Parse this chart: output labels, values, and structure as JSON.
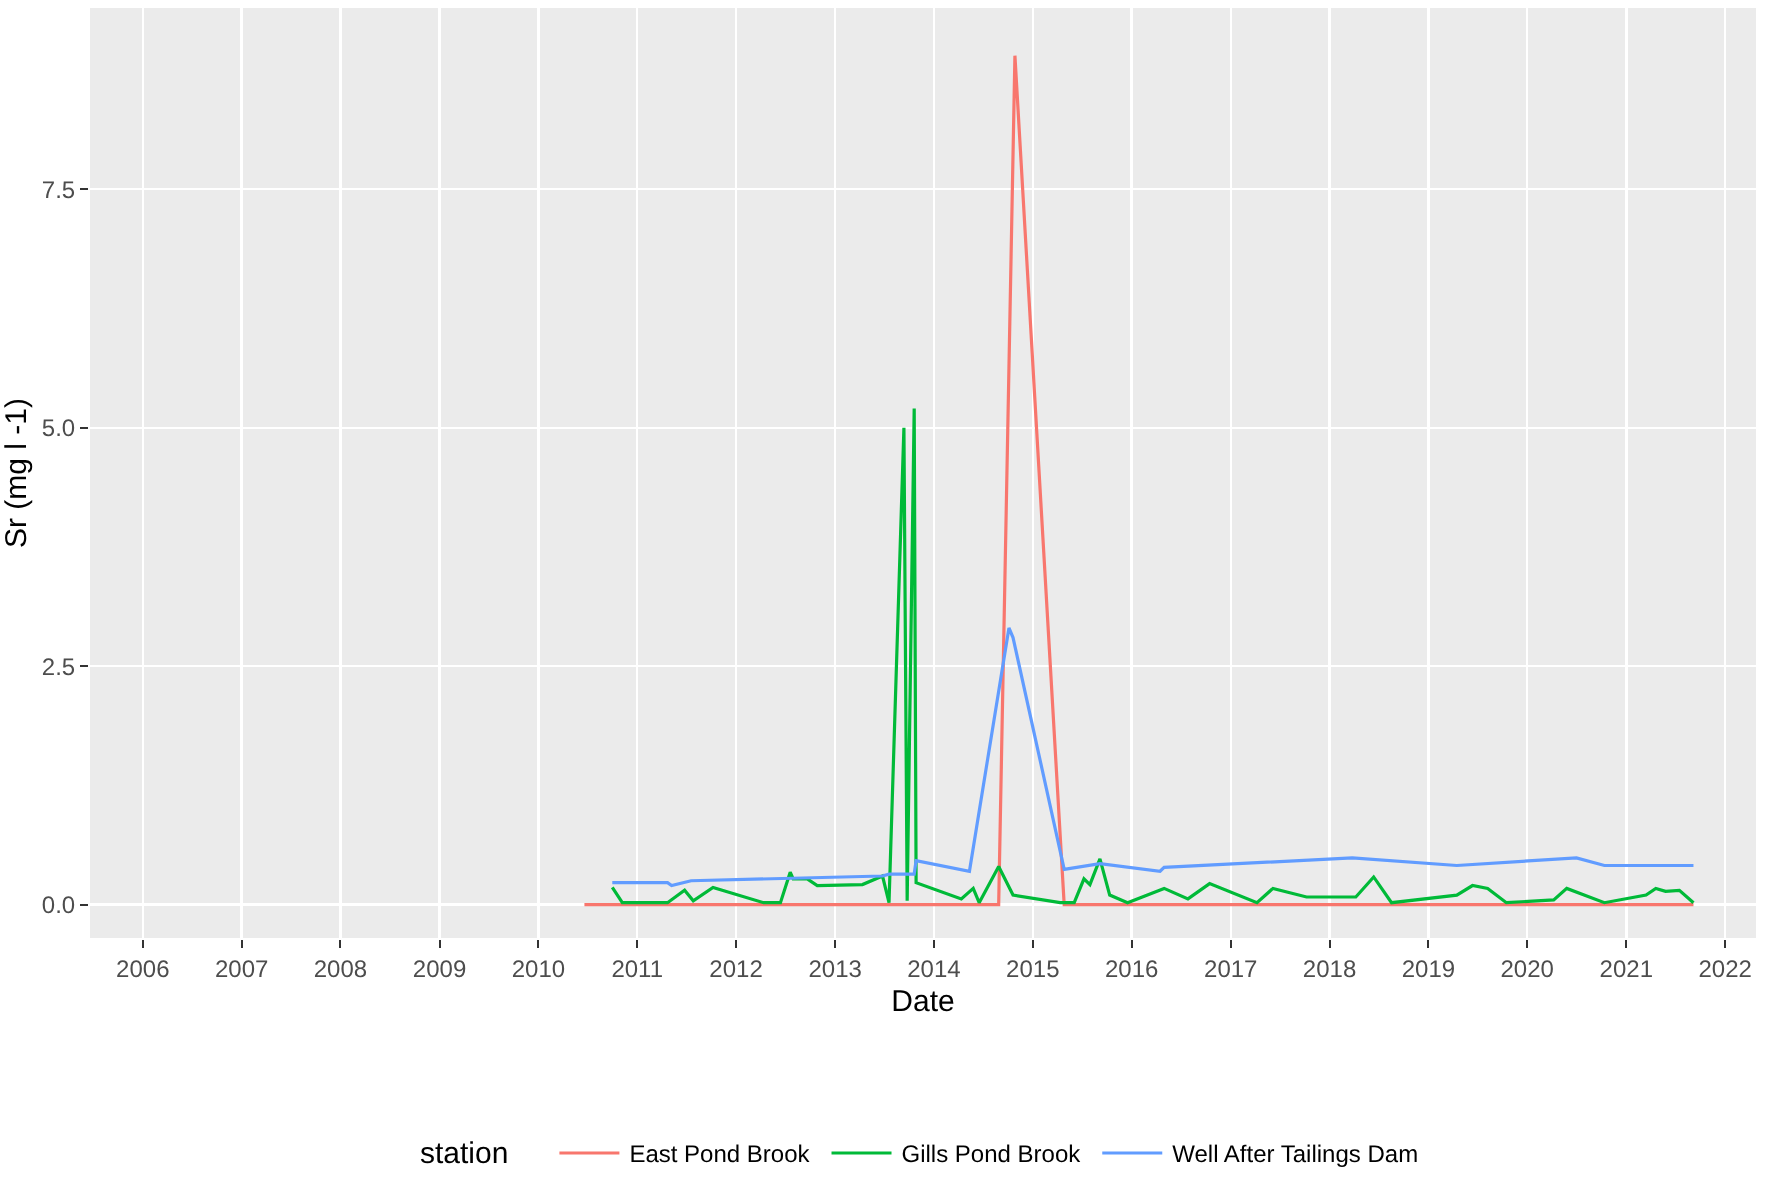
{
  "chart_data": {
    "type": "line",
    "xlabel": "Date",
    "ylabel": "Sr (mg l -1)",
    "legend_title": "station",
    "legend": "bottom",
    "grid": true,
    "xlim": [
      "2005-06-20",
      "2022-04-25"
    ],
    "ylim": [
      -0.35,
      9.4
    ],
    "xticks": [
      "2006",
      "2007",
      "2008",
      "2009",
      "2010",
      "2011",
      "2012",
      "2013",
      "2014",
      "2015",
      "2016",
      "2017",
      "2018",
      "2019",
      "2020",
      "2021",
      "2022"
    ],
    "yticks": [
      {
        "value": 0,
        "label": "0.0"
      },
      {
        "value": 2.5,
        "label": "2.5"
      },
      {
        "value": 5,
        "label": "5.0"
      },
      {
        "value": 7.5,
        "label": "7.5"
      }
    ],
    "series": [
      {
        "name": "East Pond Brook",
        "color": "#f8766d",
        "x": [
          "2010-06-20",
          "2014-08-28",
          "2014-10-27",
          "2015-04-27",
          "2021-09-06"
        ],
        "values": [
          0,
          0,
          8.9,
          0,
          0
        ]
      },
      {
        "name": "Gills Pond Brook",
        "color": "#00ba38",
        "x": [
          "2010-10-01",
          "2010-11-07",
          "2011-04-23",
          "2011-06-25",
          "2011-07-27",
          "2011-10-08",
          "2012-04-12",
          "2012-06-13",
          "2012-07-19",
          "2012-07-30",
          "2012-09-20",
          "2012-10-27",
          "2013-04-12",
          "2013-06-25",
          "2013-07-19",
          "2013-09-12",
          "2013-09-24",
          "2013-10-20",
          "2013-10-27",
          "2014-04-12",
          "2014-05-26",
          "2014-06-17",
          "2014-08-28",
          "2014-10-20",
          "2015-04-12",
          "2015-06-03",
          "2015-07-09",
          "2015-07-31",
          "2015-09-06",
          "2015-10-12",
          "2015-12-17",
          "2016-04-30",
          "2016-07-27",
          "2016-10-15",
          "2017-04-08",
          "2017-06-06",
          "2017-10-08",
          "2018-04-08",
          "2018-06-13",
          "2018-08-18",
          "2019-04-16",
          "2019-06-13",
          "2019-08-08",
          "2019-10-16",
          "2020-04-08",
          "2020-05-26",
          "2020-10-12",
          "2021-03-15",
          "2021-04-20",
          "2021-05-26",
          "2021-07-16",
          "2021-09-06"
        ],
        "values": [
          0.18,
          0.02,
          0.02,
          0.15,
          0.04,
          0.18,
          0.02,
          0.02,
          0.34,
          0.27,
          0.27,
          0.2,
          0.21,
          0.3,
          0.02,
          5.0,
          0.04,
          5.2,
          0.23,
          0.06,
          0.17,
          0.02,
          0.4,
          0.1,
          0.02,
          0.02,
          0.27,
          0.21,
          0.48,
          0.1,
          0.02,
          0.17,
          0.06,
          0.22,
          0.02,
          0.17,
          0.08,
          0.08,
          0.29,
          0.02,
          0.1,
          0.2,
          0.17,
          0.02,
          0.05,
          0.17,
          0.02,
          0.1,
          0.17,
          0.14,
          0.15,
          0.02
        ]
      },
      {
        "name": "Well After Tailings Dam",
        "color": "#619cff",
        "x": [
          "2010-10-01",
          "2011-04-23",
          "2011-05-08",
          "2011-07-19",
          "2013-06-25",
          "2013-07-19",
          "2013-10-20",
          "2013-10-27",
          "2014-05-12",
          "2014-10-05",
          "2014-10-20",
          "2015-04-27",
          "2015-09-06",
          "2016-04-15",
          "2016-04-30",
          "2018-03-26",
          "2019-04-16",
          "2020-07-01",
          "2020-10-12",
          "2021-09-06"
        ],
        "values": [
          0.23,
          0.23,
          0.2,
          0.25,
          0.3,
          0.32,
          0.32,
          0.46,
          0.35,
          2.9,
          2.8,
          0.37,
          0.43,
          0.35,
          0.39,
          0.49,
          0.41,
          0.49,
          0.41,
          0.41
        ]
      }
    ]
  }
}
